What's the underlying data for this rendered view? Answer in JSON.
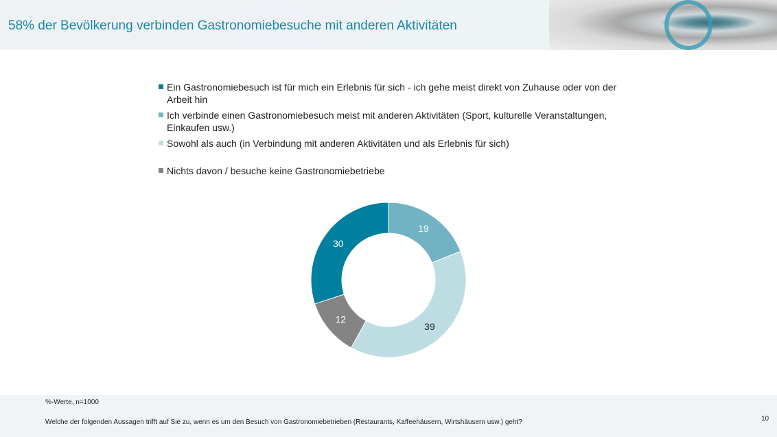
{
  "title": "58% der Bevölkerung verbinden Gastronomiebesuche mit anderen Aktivitäten",
  "chart_data": {
    "type": "pie",
    "donut": true,
    "series": [
      {
        "name": "Ich verbinde einen Gastronomiebesuch meist mit anderen Aktivitäten (Sport, kulturelle Veranstaltungen, Einkaufen usw.)",
        "value": 19,
        "color": "#72b2c2",
        "label_color": "#ffffff"
      },
      {
        "name": "Sowohl als auch (in Verbindung mit anderen Aktivitäten und als Erlebnis für sich)",
        "value": 39,
        "color": "#bddde3",
        "label_color": "#222222"
      },
      {
        "name": "Nichts davon / besuche keine Gastronomiebetriebe",
        "value": 12,
        "color": "#848484",
        "label_color": "#ffffff"
      },
      {
        "name": "Ein Gastronomiebesuch ist für mich ein Erlebnis für sich - ich gehe meist direkt von Zuhause oder von der Arbeit hin",
        "value": 30,
        "color": "#00809e",
        "label_color": "#ffffff"
      }
    ],
    "legend": [
      {
        "label": "Ein Gastronomiebesuch ist für mich ein Erlebnis für sich - ich gehe meist direkt von Zuhause oder von der Arbeit hin",
        "color": "#00809e"
      },
      {
        "label": "Ich verbinde einen Gastronomiebesuch meist mit anderen Aktivitäten (Sport, kulturelle Veranstaltungen, Einkaufen usw.)",
        "color": "#72b2c2"
      },
      {
        "label": "Sowohl als auch (in Verbindung mit anderen Aktivitäten und als Erlebnis für sich)",
        "color": "#bddde3"
      },
      {
        "label": "Nichts davon / besuche keine Gastronomiebetriebe",
        "color": "#848484"
      }
    ],
    "legend_position": "top"
  },
  "footer": {
    "note": "%-Werte, n=1000",
    "question": "Welche der folgenden Aussagen trifft auf Sie zu, wenn es um den Besuch von Gastronomiebetrieben (Restaurants, Kaffeehäusern, Wirtshäusern usw.) geht?",
    "page": "10"
  }
}
